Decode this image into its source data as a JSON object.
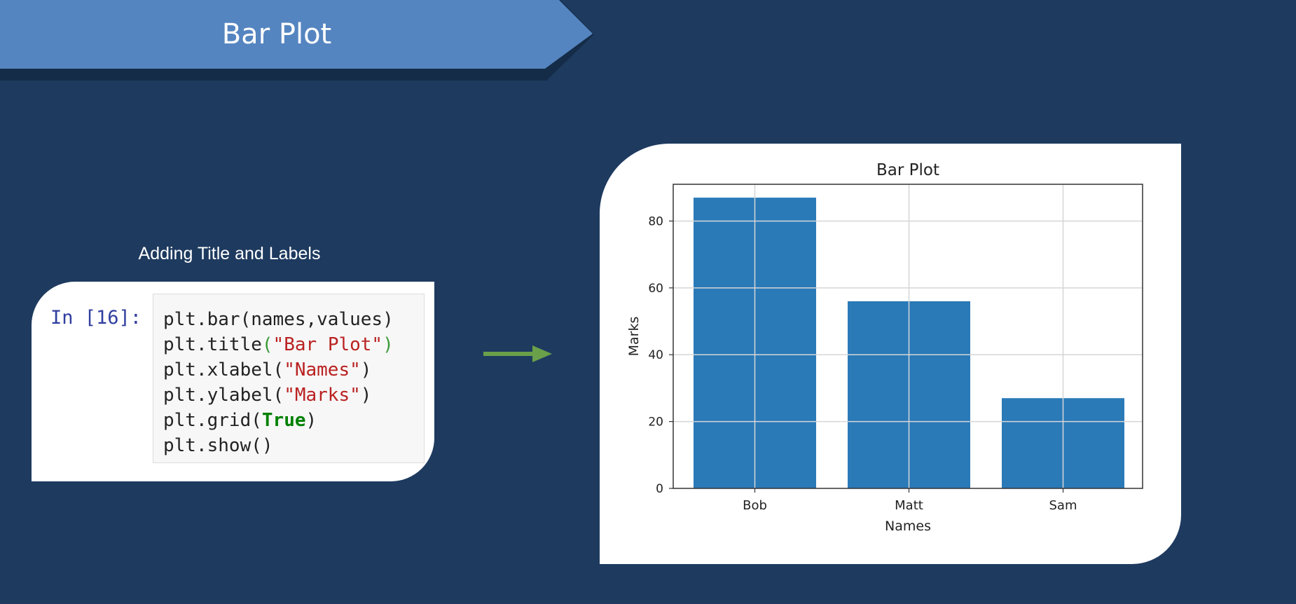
{
  "banner": {
    "title": "Bar Plot"
  },
  "section": {
    "heading": "Adding Title and Labels"
  },
  "notebook": {
    "prompt": "In [16]:",
    "lines": [
      [
        {
          "t": "plt.bar(names,values)",
          "c": ""
        }
      ],
      [
        {
          "t": "plt.title",
          "c": ""
        },
        {
          "t": "(",
          "c": "paren-g"
        },
        {
          "t": "\"Bar Plot\"",
          "c": "str"
        },
        {
          "t": ")",
          "c": "paren-g"
        }
      ],
      [
        {
          "t": "plt.xlabel(",
          "c": ""
        },
        {
          "t": "\"Names\"",
          "c": "str"
        },
        {
          "t": ")",
          "c": ""
        }
      ],
      [
        {
          "t": "plt.ylabel(",
          "c": ""
        },
        {
          "t": "\"Marks\"",
          "c": "str"
        },
        {
          "t": ")",
          "c": ""
        }
      ],
      [
        {
          "t": "plt.grid(",
          "c": ""
        },
        {
          "t": "True",
          "c": "kw"
        },
        {
          "t": ")",
          "c": ""
        }
      ],
      [
        {
          "t": "plt.show()",
          "c": ""
        }
      ]
    ]
  },
  "colors": {
    "background": "#1e3a5f",
    "banner": "#5585c0",
    "arrow": "#6aa04a",
    "bar": "#2a7ab8"
  },
  "chart_data": {
    "type": "bar",
    "title": "Bar Plot",
    "xlabel": "Names",
    "ylabel": "Marks",
    "categories": [
      "Bob",
      "Matt",
      "Sam"
    ],
    "values": [
      87,
      56,
      27
    ],
    "ylim": [
      0,
      91
    ],
    "yticks": [
      0,
      20,
      40,
      60,
      80
    ],
    "grid": true
  }
}
